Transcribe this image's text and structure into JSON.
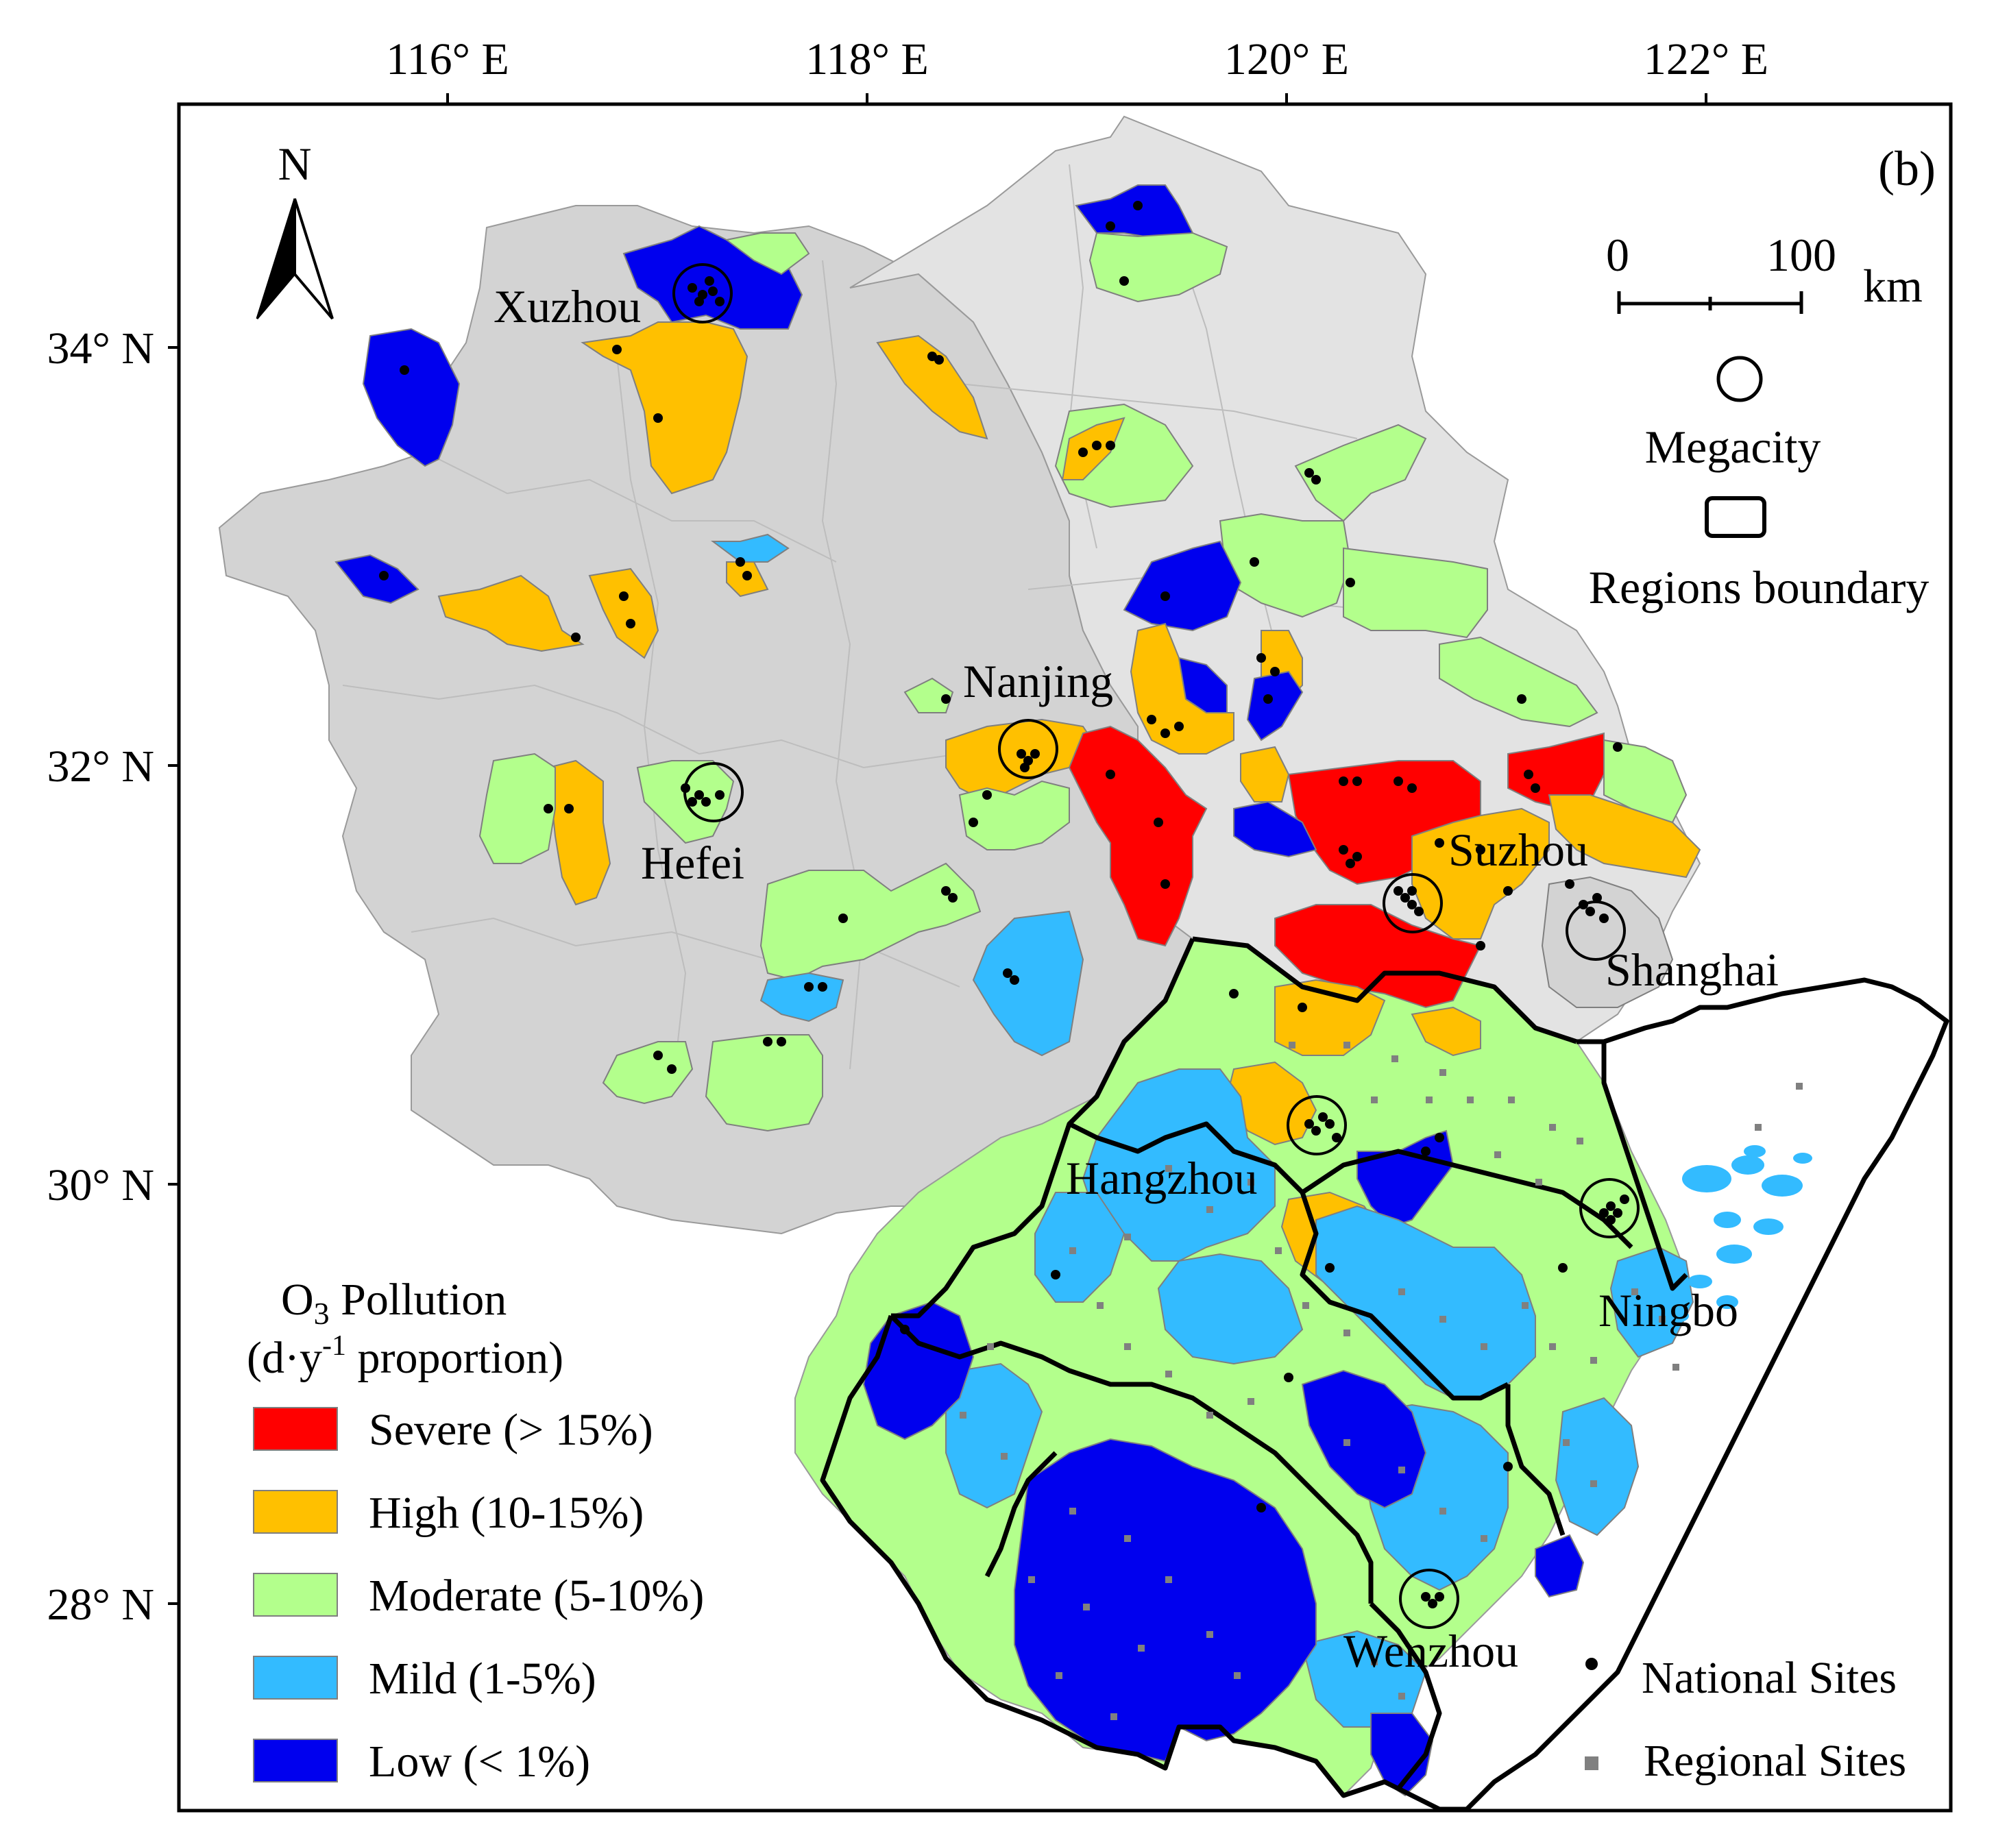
{
  "panel_label": "(b)",
  "north_arrow": {
    "label": "N",
    "icon": "north-arrow-icon"
  },
  "axes": {
    "longitude_ticks": [
      "116° E",
      "118° E",
      "120° E",
      "122° E"
    ],
    "latitude_ticks": [
      "34° N",
      "32° N",
      "30° N",
      "28° N"
    ]
  },
  "scale_bar": {
    "start": "0",
    "end": "100",
    "unit": "km"
  },
  "map_legend": {
    "megacity": "Megacity",
    "regions_boundary": "Regions boundary"
  },
  "cities": [
    "Xuzhou",
    "Nanjing",
    "Hefei",
    "Suzhou",
    "Shanghai",
    "Hangzhou",
    "Ningbo",
    "Wenzhou"
  ],
  "o3_legend": {
    "title_prefix": "O",
    "title_subscript": "3",
    "title_suffix": " Pollution",
    "subtitle_open": "(d·y",
    "subtitle_sup": "-1",
    "subtitle_close": " proportion)",
    "classes": [
      {
        "label": "Severe (> 15%)",
        "color": "#ff0000"
      },
      {
        "label": "High (10-15%)",
        "color": "#ffc000"
      },
      {
        "label": "Moderate (5-10%)",
        "color": "#b3ff8c"
      },
      {
        "label": "Mild (1-5%)",
        "color": "#33bbff"
      },
      {
        "label": "Low (< 1%)",
        "color": "#0000ee"
      }
    ]
  },
  "sites_legend": {
    "national": "National Sites",
    "regional": "Regional Sites"
  },
  "colors": {
    "background_region": "#d3d3d3",
    "light_region": "#e3e3e3",
    "severe": "#ff0000",
    "high": "#ffc000",
    "moderate": "#b3ff8c",
    "mild": "#33bbff",
    "low": "#0000ee",
    "regional_site": "#808080"
  }
}
